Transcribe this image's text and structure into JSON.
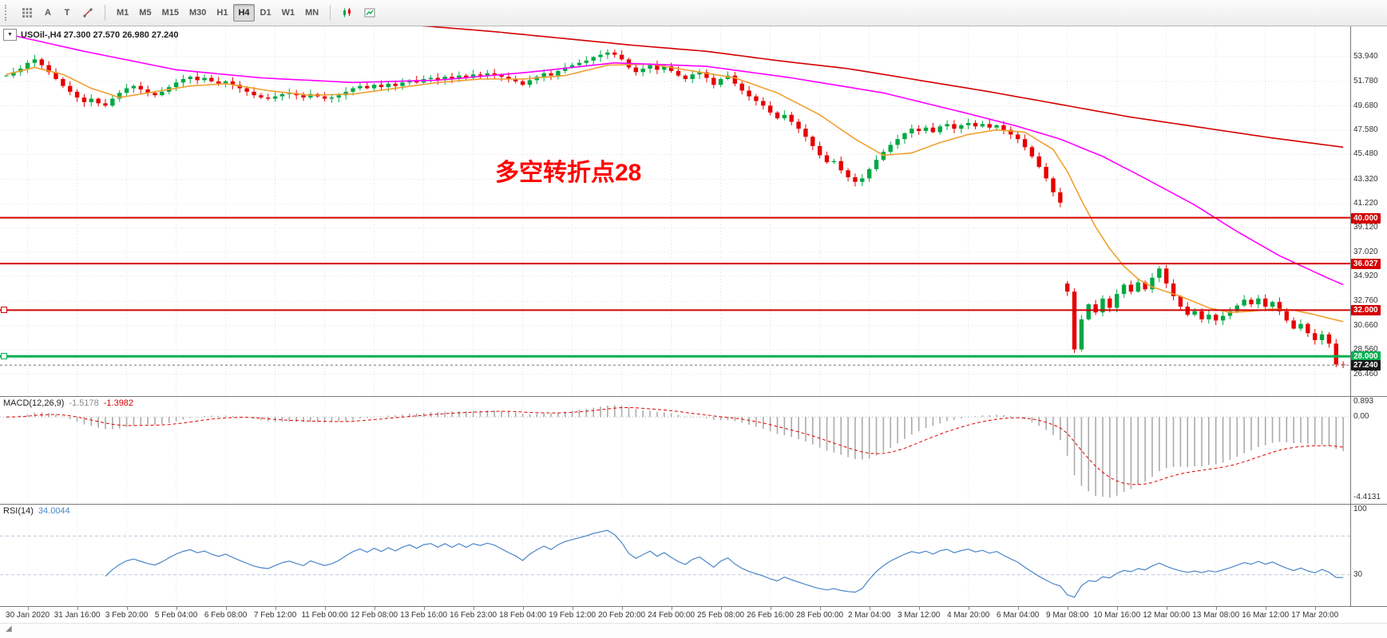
{
  "toolbar": {
    "tool_a": "A",
    "tool_t": "T",
    "timeframes": [
      "M1",
      "M5",
      "M15",
      "M30",
      "H1",
      "H4",
      "D1",
      "W1",
      "MN"
    ],
    "selected_timeframe": "H4"
  },
  "colors": {
    "candle_up": "#00a843",
    "candle_down": "#e60000",
    "macd_hist": "#ababab",
    "macd_signal": "#e00000",
    "rsi_line": "#4a86c8",
    "rsi_level": "#b9c7e0",
    "grid": "#e0e0e0",
    "current_price_tag": "#1a1a1a"
  },
  "chart_data": {
    "type": "candlestick",
    "symbol": "USOil-",
    "timeframe": "H4",
    "ohlc_label": "USOil-,H4 27.300 27.570 26.980 27.240",
    "annotation": {
      "text": "多空转折点28",
      "color": "#ff0000"
    },
    "y_ticks": [
      "53.940",
      "51.780",
      "49.680",
      "47.580",
      "45.480",
      "43.320",
      "41.220",
      "39.120",
      "37.020",
      "34.920",
      "32.760",
      "30.660",
      "28.560",
      "26.460"
    ],
    "y_range": [
      24.56,
      56.56
    ],
    "closes": [
      52.3,
      52.6,
      52.9,
      53.4,
      53.7,
      53.2,
      52.6,
      52.0,
      51.4,
      50.9,
      50.4,
      50.0,
      50.3,
      49.9,
      49.7,
      50.3,
      50.8,
      51.2,
      51.4,
      51.1,
      50.8,
      50.6,
      50.9,
      51.3,
      51.7,
      52.0,
      52.2,
      51.9,
      52.1,
      51.8,
      51.6,
      51.8,
      51.5,
      51.2,
      50.9,
      50.6,
      50.4,
      50.3,
      50.5,
      50.7,
      50.8,
      50.6,
      50.4,
      50.7,
      50.5,
      50.3,
      50.4,
      50.6,
      50.9,
      51.2,
      51.4,
      51.2,
      51.5,
      51.3,
      51.6,
      51.4,
      51.7,
      51.9,
      51.7,
      52.0,
      52.1,
      51.9,
      52.2,
      52.0,
      52.3,
      52.1,
      52.4,
      52.3,
      52.5,
      52.4,
      52.2,
      52.0,
      51.8,
      51.5,
      51.9,
      52.2,
      52.5,
      52.3,
      52.7,
      53.0,
      53.2,
      53.4,
      53.6,
      53.9,
      54.1,
      54.3,
      54.1,
      53.7,
      53.0,
      52.6,
      52.9,
      53.2,
      52.8,
      53.1,
      52.7,
      52.3,
      52.0,
      52.4,
      52.6,
      52.1,
      51.5,
      52.0,
      52.3,
      51.6,
      51.0,
      50.5,
      50.1,
      49.7,
      49.1,
      48.6,
      48.9,
      48.3,
      47.7,
      47.0,
      46.2,
      45.4,
      44.8,
      44.9,
      44.1,
      43.5,
      43.1,
      43.4,
      44.2,
      45.0,
      45.7,
      46.3,
      46.8,
      47.3,
      47.7,
      47.5,
      47.8,
      47.4,
      47.9,
      48.1,
      47.7,
      48.0,
      48.2,
      47.9,
      48.1,
      47.8,
      48.0,
      47.6,
      47.2,
      46.8,
      46.1,
      45.3,
      44.4,
      43.4,
      42.2,
      41.3,
      33.6,
      28.6,
      31.2,
      32.5,
      31.8,
      33.0,
      32.2,
      33.4,
      34.2,
      33.6,
      34.4,
      33.8,
      34.8,
      35.6,
      34.3,
      33.2,
      32.3,
      31.6,
      31.9,
      31.2,
      31.6,
      31.1,
      31.5,
      31.9,
      32.4,
      32.9,
      32.5,
      33.0,
      32.3,
      32.7,
      31.9,
      31.1,
      30.4,
      30.8,
      30.0,
      29.4,
      29.9,
      29.1,
      27.3,
      27.24
    ],
    "gap_opens": {
      "150": 34.3
    },
    "last_bar": {
      "open": 27.3,
      "high": 27.57,
      "low": 26.98,
      "close": 27.24
    },
    "hlines": [
      {
        "value": 40.0,
        "label": "40.000",
        "color": "#d40000",
        "width": 2,
        "edge_marker": false
      },
      {
        "value": 36.027,
        "label": "36.027",
        "color": "#d40000",
        "width": 2,
        "edge_marker": false
      },
      {
        "value": 32.0,
        "label": "32.000",
        "color": "#d40000",
        "width": 2,
        "edge_marker": true
      },
      {
        "value": 28.0,
        "label": "28.000",
        "color": "#00b050",
        "width": 3,
        "edge_marker": true
      }
    ],
    "current_price": {
      "value": 27.24,
      "label": "27.240"
    },
    "moving_averages": [
      {
        "name": "ma-fast",
        "color": "#f0a030",
        "points": [
          [
            0,
            52.4
          ],
          [
            4,
            53.0
          ],
          [
            8,
            52.4
          ],
          [
            12,
            51.2
          ],
          [
            16,
            50.4
          ],
          [
            20,
            50.8
          ],
          [
            26,
            51.4
          ],
          [
            31,
            51.6
          ],
          [
            37,
            51.0
          ],
          [
            43,
            50.6
          ],
          [
            49,
            50.7
          ],
          [
            55,
            51.2
          ],
          [
            61,
            51.7
          ],
          [
            67,
            52.0
          ],
          [
            73,
            52.0
          ],
          [
            79,
            52.3
          ],
          [
            85,
            53.2
          ],
          [
            91,
            53.3
          ],
          [
            97,
            52.7
          ],
          [
            103,
            52.1
          ],
          [
            109,
            50.8
          ],
          [
            115,
            48.9
          ],
          [
            120,
            46.8
          ],
          [
            124,
            45.4
          ],
          [
            128,
            45.6
          ],
          [
            132,
            46.5
          ],
          [
            136,
            47.2
          ],
          [
            140,
            47.6
          ],
          [
            144,
            47.4
          ],
          [
            148,
            45.9
          ],
          [
            150,
            44.0
          ],
          [
            152,
            41.5
          ],
          [
            154,
            39.2
          ],
          [
            156,
            37.3
          ],
          [
            158,
            35.8
          ],
          [
            160,
            34.7
          ],
          [
            162,
            34.0
          ],
          [
            164,
            33.6
          ],
          [
            166,
            33.2
          ],
          [
            168,
            32.7
          ],
          [
            170,
            32.2
          ],
          [
            173,
            31.8
          ],
          [
            176,
            31.9
          ],
          [
            179,
            32.1
          ],
          [
            182,
            32.0
          ],
          [
            185,
            31.6
          ],
          [
            187,
            31.3
          ],
          [
            189,
            31.0
          ]
        ]
      },
      {
        "name": "ma-mid",
        "color": "#ff00ff",
        "points": [
          [
            0,
            55.9
          ],
          [
            11,
            54.4
          ],
          [
            24,
            52.8
          ],
          [
            36,
            52.1
          ],
          [
            49,
            51.7
          ],
          [
            61,
            51.9
          ],
          [
            74,
            52.6
          ],
          [
            86,
            53.4
          ],
          [
            99,
            53.1
          ],
          [
            111,
            52.1
          ],
          [
            124,
            50.8
          ],
          [
            136,
            49.0
          ],
          [
            143,
            47.9
          ],
          [
            149,
            46.8
          ],
          [
            155,
            45.3
          ],
          [
            161,
            43.4
          ],
          [
            168,
            41.1
          ],
          [
            174,
            38.8
          ],
          [
            180,
            36.7
          ],
          [
            186,
            35.0
          ],
          [
            189,
            34.2
          ]
        ]
      },
      {
        "name": "ma-slow",
        "color": "#d40000",
        "points": [
          [
            0,
            59.5
          ],
          [
            30,
            58.0
          ],
          [
            59,
            56.6
          ],
          [
            69,
            56.1
          ],
          [
            79,
            55.5
          ],
          [
            89,
            54.9
          ],
          [
            99,
            54.4
          ],
          [
            109,
            53.6
          ],
          [
            119,
            52.9
          ],
          [
            129,
            51.9
          ],
          [
            139,
            50.9
          ],
          [
            149,
            49.8
          ],
          [
            159,
            48.7
          ],
          [
            169,
            47.8
          ],
          [
            179,
            46.9
          ],
          [
            189,
            46.1
          ]
        ]
      }
    ],
    "macd": {
      "name": "MACD(12,26,9)",
      "main": "-1.5178",
      "signal": "-1.3982",
      "fast": 12,
      "slow": 26,
      "signal_period": 9,
      "scale_min": -4.4131,
      "ticks": [
        {
          "v": 0.893,
          "label": "0.893"
        },
        {
          "v": 0,
          "label": "0.00"
        },
        {
          "v": -4.4131,
          "label": "-4.4131"
        }
      ]
    },
    "rsi": {
      "name": "RSI(14)",
      "value": "34.0044",
      "period": 14,
      "levels": [
        70,
        30
      ],
      "ticks": [
        {
          "v": 100,
          "label": "100"
        },
        {
          "v": 30,
          "label": "30"
        }
      ]
    },
    "time_labels": [
      "30 Jan 2020",
      "31 Jan 16:00",
      "3 Feb 20:00",
      "5 Feb 04:00",
      "6 Feb 08:00",
      "7 Feb 12:00",
      "11 Feb 00:00",
      "12 Feb 08:00",
      "13 Feb 16:00",
      "16 Feb 23:00",
      "18 Feb 04:00",
      "19 Feb 12:00",
      "20 Feb 20:00",
      "24 Feb 00:00",
      "25 Feb 08:00",
      "26 Feb 16:00",
      "28 Feb 00:00",
      "2 Mar 04:00",
      "3 Mar 12:00",
      "4 Mar 20:00",
      "6 Mar 04:00",
      "9 Mar 08:00",
      "10 Mar 16:00",
      "12 Mar 00:00",
      "13 Mar 08:00",
      "16 Mar 12:00",
      "17 Mar 20:00"
    ]
  }
}
